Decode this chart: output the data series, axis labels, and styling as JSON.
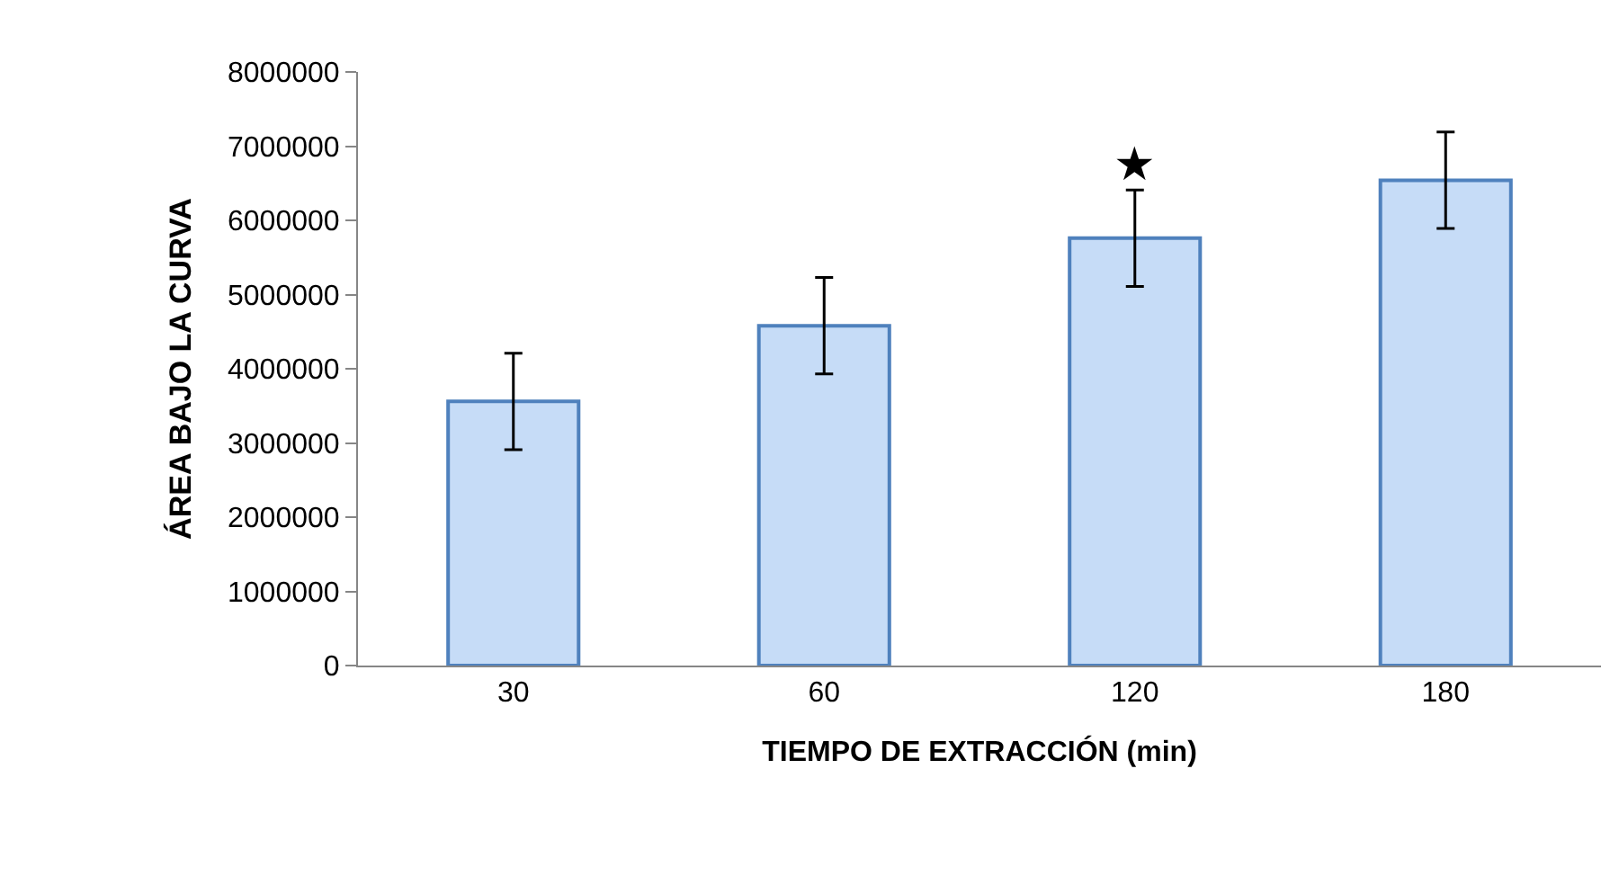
{
  "chart_data": {
    "type": "bar",
    "xlabel": "TIEMPO DE EXTRACCIÓN (min)",
    "ylabel": "ÁREA BAJO LA CURVA",
    "categories": [
      "30",
      "60",
      "120",
      "180"
    ],
    "values": [
      3560000,
      4580000,
      5760000,
      6540000
    ],
    "errors": [
      650000,
      650000,
      650000,
      650000
    ],
    "color": "#c6dcf7",
    "ylim": [
      0,
      8000000
    ],
    "yticks": [
      0,
      1000000,
      2000000,
      3000000,
      4000000,
      5000000,
      6000000,
      7000000,
      8000000
    ],
    "annotations": [
      "★"
    ]
  }
}
